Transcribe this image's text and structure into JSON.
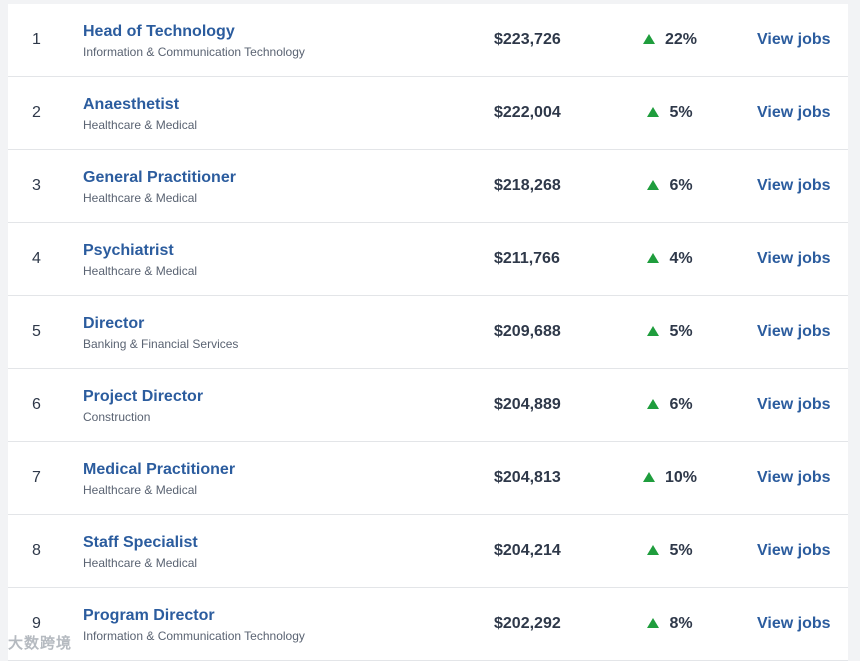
{
  "rows": [
    {
      "rank": "1",
      "title": "Head of Technology",
      "category": "Information & Communication Technology",
      "salary": "$223,726",
      "change": "22%",
      "action": "View jobs"
    },
    {
      "rank": "2",
      "title": "Anaesthetist",
      "category": "Healthcare & Medical",
      "salary": "$222,004",
      "change": "5%",
      "action": "View jobs"
    },
    {
      "rank": "3",
      "title": "General Practitioner",
      "category": "Healthcare & Medical",
      "salary": "$218,268",
      "change": "6%",
      "action": "View jobs"
    },
    {
      "rank": "4",
      "title": "Psychiatrist",
      "category": "Healthcare & Medical",
      "salary": "$211,766",
      "change": "4%",
      "action": "View jobs"
    },
    {
      "rank": "5",
      "title": "Director",
      "category": "Banking & Financial Services",
      "salary": "$209,688",
      "change": "5%",
      "action": "View jobs"
    },
    {
      "rank": "6",
      "title": "Project Director",
      "category": "Construction",
      "salary": "$204,889",
      "change": "6%",
      "action": "View jobs"
    },
    {
      "rank": "7",
      "title": "Medical Practitioner",
      "category": "Healthcare & Medical",
      "salary": "$204,813",
      "change": "10%",
      "action": "View jobs"
    },
    {
      "rank": "8",
      "title": "Staff Specialist",
      "category": "Healthcare & Medical",
      "salary": "$204,214",
      "change": "5%",
      "action": "View jobs"
    },
    {
      "rank": "9",
      "title": "Program Director",
      "category": "Information & Communication Technology",
      "salary": "$202,292",
      "change": "8%",
      "action": "View jobs"
    }
  ],
  "change_icon": "triangle-up-icon",
  "colors": {
    "link": "#2b5c9e",
    "up": "#1f9d3d",
    "text": "#2e3849"
  },
  "watermark": "大数跨境"
}
